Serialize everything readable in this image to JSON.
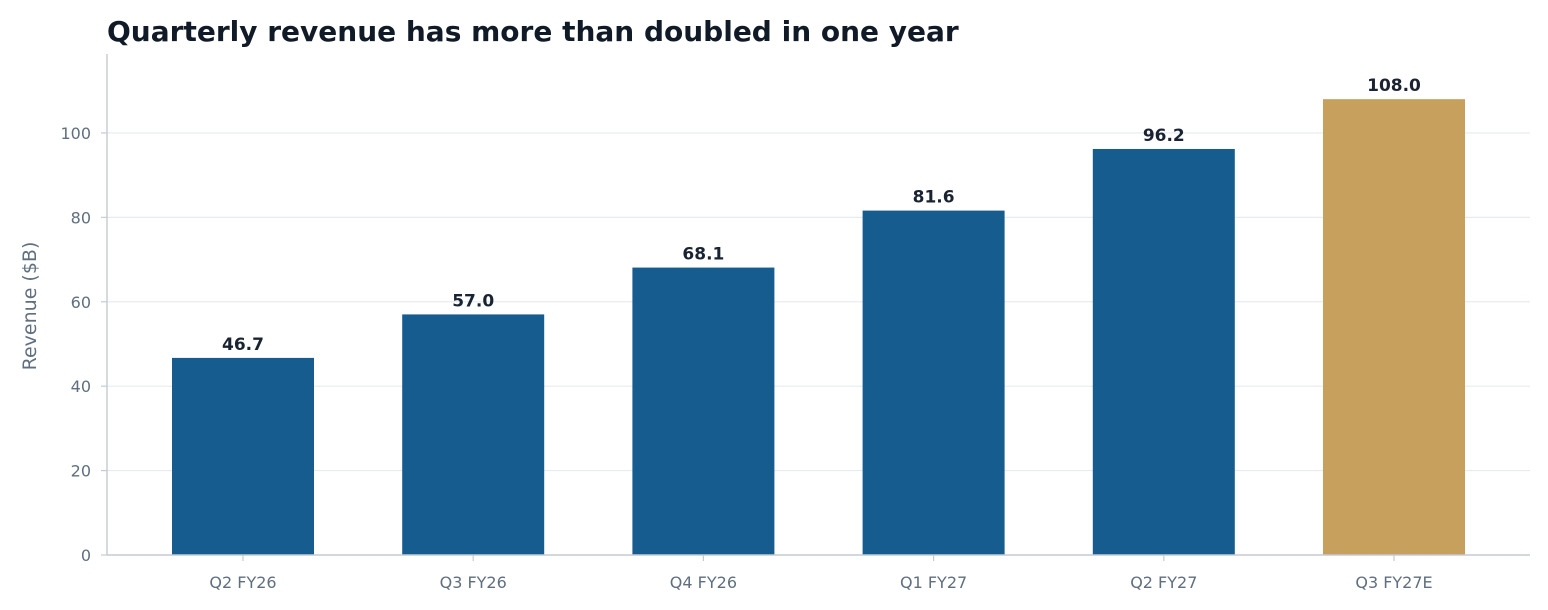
{
  "chart_data": {
    "type": "bar",
    "title": "Quarterly revenue has more than doubled in one year",
    "xlabel": "",
    "ylabel": "Revenue ($B)",
    "categories": [
      "Q2 FY26",
      "Q3 FY26",
      "Q4 FY26",
      "Q1 FY27",
      "Q2 FY27",
      "Q3 FY27E"
    ],
    "values": [
      46.7,
      57.0,
      68.1,
      81.6,
      96.2,
      108.0
    ],
    "value_labels": [
      "46.7",
      "57.0",
      "68.1",
      "81.6",
      "96.2",
      "108.0"
    ],
    "ylim": [
      0,
      118.7
    ],
    "yticks": [
      0,
      20,
      40,
      60,
      80,
      100
    ],
    "ytick_labels": [
      "0",
      "20",
      "40",
      "60",
      "80",
      "100"
    ],
    "grid": true,
    "legend": "none",
    "colors": {
      "actual": "#175c8e",
      "estimate": "#c6a05c",
      "grid": "#e6ebef",
      "axis": "#c3cbd3",
      "title": "#111a27",
      "labels": "#5f6f80",
      "value_labels": "#1a2332"
    },
    "bar_colors": [
      "actual",
      "actual",
      "actual",
      "actual",
      "actual",
      "estimate"
    ]
  }
}
